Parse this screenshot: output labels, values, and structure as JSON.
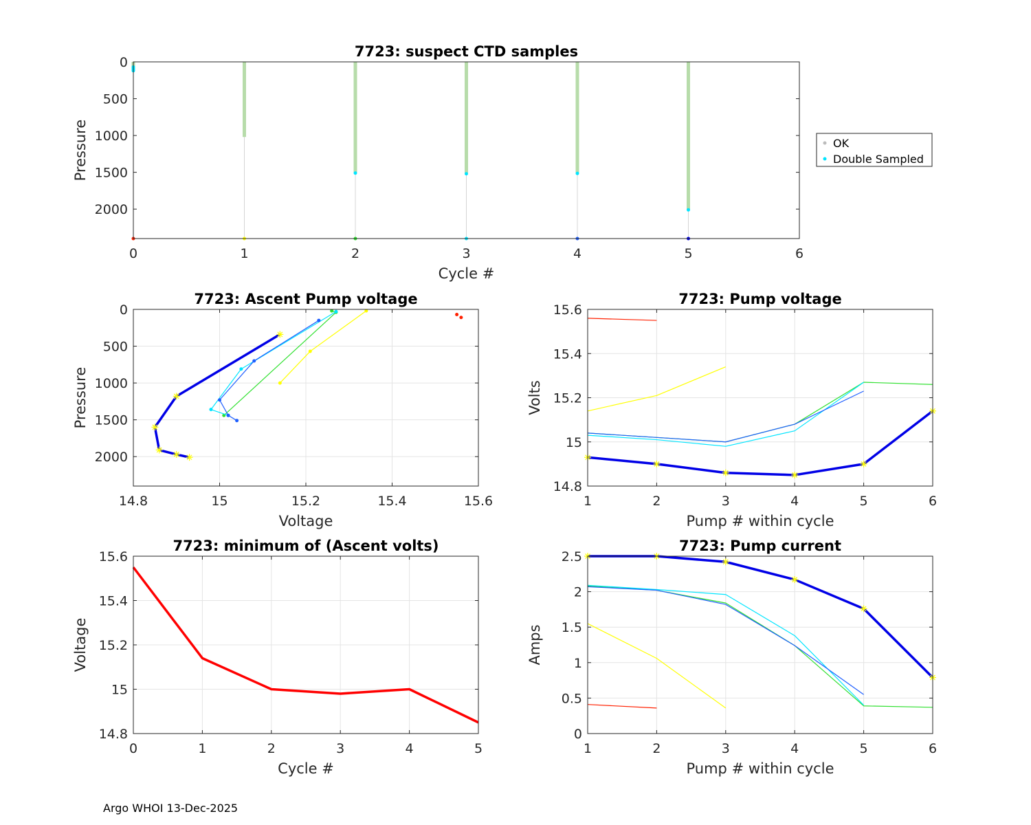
{
  "footer": "Argo WHOI 13-Dec-2025",
  "legend": {
    "items": [
      "OK",
      "Double Sampled"
    ],
    "colors": [
      "#bbbbbb",
      "#00e5ff"
    ]
  },
  "cycle_colors": [
    "#ff2000",
    "#ffff00",
    "#30e030",
    "#00e5ff",
    "#1f5fff",
    "#0000e6"
  ],
  "chart_data": [
    {
      "id": "ctd",
      "type": "scatter",
      "title": "7723: suspect CTD samples",
      "xlabel": "Cycle #",
      "ylabel": "Pressure",
      "xlim": [
        0,
        6
      ],
      "ylim": [
        2400,
        0
      ],
      "xticks": [
        0,
        1,
        2,
        3,
        4,
        5,
        6
      ],
      "yticks": [
        0,
        500,
        1000,
        1500,
        2000
      ],
      "columns": [
        {
          "cycle": 0,
          "max_pressure": 100,
          "double_sampled": [
            70,
            90,
            110,
            120
          ]
        },
        {
          "cycle": 1,
          "max_pressure": 1020,
          "double_sampled": []
        },
        {
          "cycle": 2,
          "max_pressure": 1500,
          "double_sampled": [
            1510
          ]
        },
        {
          "cycle": 3,
          "max_pressure": 1510,
          "double_sampled": [
            1520
          ]
        },
        {
          "cycle": 4,
          "max_pressure": 1505,
          "double_sampled": [
            1515
          ]
        },
        {
          "cycle": 5,
          "max_pressure": 2010,
          "double_sampled": [
            2010
          ]
        }
      ],
      "bottom_markers": [
        0,
        1,
        2,
        3,
        4,
        5
      ]
    },
    {
      "id": "ascent",
      "type": "line",
      "title": "7723: Ascent Pump voltage",
      "xlabel": "Voltage",
      "ylabel": "Pressure",
      "xlim": [
        14.8,
        15.6
      ],
      "ylim": [
        2400,
        0
      ],
      "xticks": [
        14.8,
        15,
        15.2,
        15.4,
        15.6
      ],
      "yticks": [
        0,
        500,
        1000,
        1500,
        2000
      ],
      "series": [
        {
          "cycle": 0,
          "points": [
            [
              15.55,
              70
            ],
            [
              15.56,
              110
            ]
          ],
          "line": false
        },
        {
          "cycle": 1,
          "points": [
            [
              15.34,
              20
            ],
            [
              15.21,
              570
            ],
            [
              15.14,
              1000
            ]
          ]
        },
        {
          "cycle": 2,
          "points": [
            [
              15.26,
              20
            ],
            [
              15.27,
              40
            ],
            [
              15.01,
              1440
            ]
          ]
        },
        {
          "cycle": 3,
          "points": [
            [
              15.27,
              30
            ],
            [
              15.05,
              810
            ],
            [
              14.98,
              1360
            ],
            [
              15.02,
              1440
            ]
          ]
        },
        {
          "cycle": 4,
          "points": [
            [
              15.23,
              150
            ],
            [
              15.08,
              700
            ],
            [
              15.0,
              1230
            ],
            [
              15.02,
              1440
            ],
            [
              15.04,
              1510
            ]
          ]
        },
        {
          "cycle": 5,
          "points": [
            [
              15.14,
              340
            ],
            [
              14.9,
              1180
            ],
            [
              14.85,
              1600
            ],
            [
              14.86,
              1910
            ],
            [
              14.9,
              1970
            ],
            [
              14.93,
              2010
            ]
          ],
          "thick": true
        }
      ]
    },
    {
      "id": "pumpv",
      "type": "line",
      "title": "7723: Pump voltage",
      "xlabel": "Pump # within cycle",
      "ylabel": "Volts",
      "xlim": [
        1,
        6
      ],
      "ylim": [
        14.8,
        15.6
      ],
      "xticks": [
        1,
        2,
        3,
        4,
        5,
        6
      ],
      "yticks": [
        14.8,
        15,
        15.2,
        15.4,
        15.6
      ],
      "series": [
        {
          "cycle": 0,
          "points": [
            [
              1,
              15.56
            ],
            [
              2,
              15.55
            ]
          ]
        },
        {
          "cycle": 1,
          "points": [
            [
              1,
              15.14
            ],
            [
              2,
              15.21
            ],
            [
              3,
              15.34
            ]
          ]
        },
        {
          "cycle": 2,
          "points": [
            [
              1,
              15.04
            ],
            [
              2,
              15.02
            ],
            [
              3,
              15.0
            ],
            [
              4,
              15.08
            ],
            [
              5,
              15.27
            ],
            [
              6,
              15.26
            ]
          ]
        },
        {
          "cycle": 3,
          "points": [
            [
              1,
              15.03
            ],
            [
              2,
              15.01
            ],
            [
              3,
              14.98
            ],
            [
              4,
              15.05
            ],
            [
              5,
              15.27
            ]
          ]
        },
        {
          "cycle": 4,
          "points": [
            [
              1,
              15.04
            ],
            [
              2,
              15.02
            ],
            [
              3,
              15.0
            ],
            [
              4,
              15.08
            ],
            [
              5,
              15.23
            ]
          ]
        },
        {
          "cycle": 5,
          "points": [
            [
              1,
              14.93
            ],
            [
              2,
              14.9
            ],
            [
              3,
              14.86
            ],
            [
              4,
              14.85
            ],
            [
              5,
              14.9
            ],
            [
              6,
              15.14
            ]
          ],
          "thick": true
        }
      ]
    },
    {
      "id": "minv",
      "type": "line",
      "title": "7723: minimum of (Ascent volts)",
      "xlabel": "Cycle #",
      "ylabel": "Voltage",
      "xlim": [
        0,
        5
      ],
      "ylim": [
        14.8,
        15.6
      ],
      "xticks": [
        0,
        1,
        2,
        3,
        4,
        5
      ],
      "yticks": [
        14.8,
        15,
        15.2,
        15.4,
        15.6
      ],
      "series": [
        {
          "color": "#ff0000",
          "points": [
            [
              0,
              15.55
            ],
            [
              1,
              15.14
            ],
            [
              2,
              15.0
            ],
            [
              3,
              14.98
            ],
            [
              4,
              15.0
            ],
            [
              5,
              14.85
            ]
          ],
          "thick": true
        }
      ]
    },
    {
      "id": "pumpc",
      "type": "line",
      "title": "7723: Pump current",
      "xlabel": "Pump # within cycle",
      "ylabel": "Amps",
      "xlim": [
        1,
        6
      ],
      "ylim": [
        0,
        2.5
      ],
      "xticks": [
        1,
        2,
        3,
        4,
        5,
        6
      ],
      "yticks": [
        0,
        0.5,
        1,
        1.5,
        2,
        2.5
      ],
      "series": [
        {
          "cycle": 0,
          "points": [
            [
              1,
              0.41
            ],
            [
              2,
              0.36
            ]
          ]
        },
        {
          "cycle": 1,
          "points": [
            [
              1,
              1.55
            ],
            [
              2,
              1.06
            ],
            [
              3,
              0.36
            ]
          ]
        },
        {
          "cycle": 2,
          "points": [
            [
              1,
              2.08
            ],
            [
              2,
              2.02
            ],
            [
              3,
              1.84
            ],
            [
              4,
              1.24
            ],
            [
              5,
              0.39
            ],
            [
              6,
              0.37
            ]
          ]
        },
        {
          "cycle": 3,
          "points": [
            [
              1,
              2.09
            ],
            [
              2,
              2.03
            ],
            [
              3,
              1.96
            ],
            [
              4,
              1.38
            ],
            [
              5,
              0.4
            ]
          ]
        },
        {
          "cycle": 4,
          "points": [
            [
              1,
              2.07
            ],
            [
              2,
              2.02
            ],
            [
              3,
              1.82
            ],
            [
              4,
              1.24
            ],
            [
              5,
              0.55
            ]
          ]
        },
        {
          "cycle": 5,
          "points": [
            [
              1,
              2.5
            ],
            [
              2,
              2.5
            ],
            [
              3,
              2.42
            ],
            [
              4,
              2.17
            ],
            [
              5,
              1.76
            ],
            [
              6,
              0.79
            ]
          ],
          "thick": true
        }
      ]
    }
  ]
}
